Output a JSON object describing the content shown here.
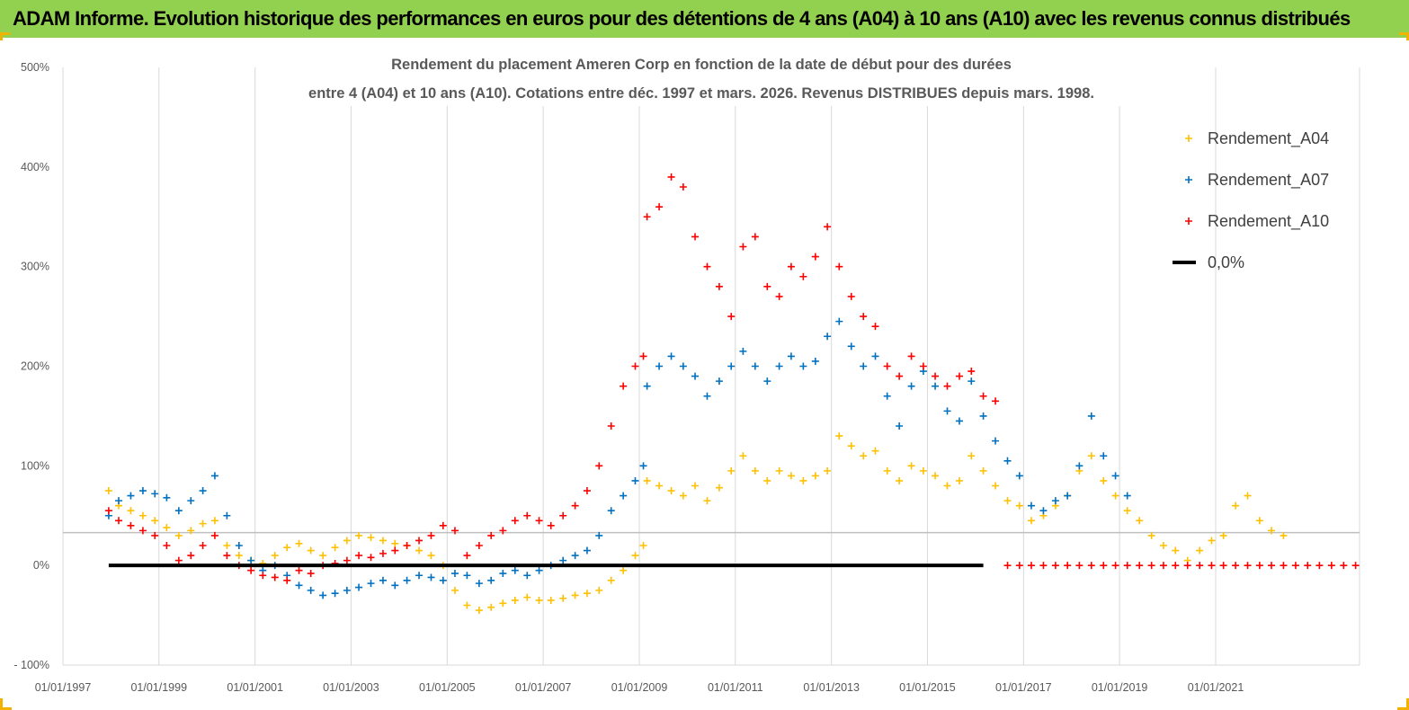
{
  "banner": {
    "title": "ADAM Informe. Evolution historique des performances en euros pour des détentions de 4 ans (A04) à 10 ans (A10) avec les revenus connus distribués",
    "background": "#92d050"
  },
  "chart_data": {
    "type": "scatter",
    "title": [
      "Rendement du placement Ameren Corp en fonction de la date de début pour des durées",
      "entre 4 (A04) et 10 ans (A10). Cotations entre déc. 1997 et mars. 2026. Revenus DISTRIBUES depuis mars. 1998."
    ],
    "xlabel": "",
    "ylabel": "",
    "x_range": [
      "1997-01-01",
      "2023-12-31"
    ],
    "ylim": [
      -100,
      500
    ],
    "y_ticks": [
      -100,
      0,
      100,
      200,
      300,
      400,
      500
    ],
    "y_tick_labels": [
      "- 100%",
      "0%",
      "100%",
      "200%",
      "300%",
      "400%",
      "500%"
    ],
    "x_tick_labels": [
      "01/01/1997",
      "01/01/1999",
      "01/01/2001",
      "01/01/2003",
      "01/01/2005",
      "01/01/2007",
      "01/01/2009",
      "01/01/2011",
      "01/01/2013",
      "01/01/2015",
      "01/01/2017",
      "01/01/2019",
      "01/01/2021"
    ],
    "grid": "vertical",
    "reference_hline": 33,
    "legend_position": "right",
    "series": [
      {
        "name": "Rendement_A04",
        "color": "#ffc000",
        "marker": "+",
        "x": [
          "1997-12-15",
          "1998-03-01",
          "1998-06-01",
          "1998-09-01",
          "1998-12-01",
          "1999-03-01",
          "1999-06-01",
          "1999-09-01",
          "1999-12-01",
          "2000-03-01",
          "2000-06-01",
          "2000-09-01",
          "2000-12-01",
          "2001-03-01",
          "2001-06-01",
          "2001-09-01",
          "2001-12-01",
          "2002-03-01",
          "2002-06-01",
          "2002-09-01",
          "2002-12-01",
          "2003-03-01",
          "2003-06-01",
          "2003-09-01",
          "2003-12-01",
          "2004-03-01",
          "2004-06-01",
          "2004-09-01",
          "2004-12-01",
          "2005-03-01",
          "2005-06-01",
          "2005-09-01",
          "2005-12-01",
          "2006-03-01",
          "2006-06-01",
          "2006-09-01",
          "2006-12-01",
          "2007-03-01",
          "2007-06-01",
          "2007-09-01",
          "2007-12-01",
          "2008-03-01",
          "2008-06-01",
          "2008-09-01",
          "2008-12-01",
          "2009-02-01",
          "2009-03-01",
          "2009-06-01",
          "2009-09-01",
          "2009-12-01",
          "2010-03-01",
          "2010-06-01",
          "2010-09-01",
          "2010-12-01",
          "2011-03-01",
          "2011-06-01",
          "2011-09-01",
          "2011-12-01",
          "2012-03-01",
          "2012-06-01",
          "2012-09-01",
          "2012-12-01",
          "2013-03-01",
          "2013-06-01",
          "2013-09-01",
          "2013-12-01",
          "2014-03-01",
          "2014-06-01",
          "2014-09-01",
          "2014-12-01",
          "2015-03-01",
          "2015-06-01",
          "2015-09-01",
          "2015-12-01",
          "2016-03-01",
          "2016-06-01",
          "2016-09-01",
          "2016-12-01",
          "2017-03-01",
          "2017-06-01",
          "2017-09-01",
          "2017-12-01",
          "2018-03-01",
          "2018-06-01",
          "2018-09-01",
          "2018-12-01",
          "2019-03-01",
          "2019-06-01",
          "2019-09-01",
          "2019-12-01",
          "2020-03-01",
          "2020-06-01",
          "2020-09-01",
          "2020-12-01",
          "2021-03-01",
          "2021-06-01",
          "2021-09-01",
          "2021-12-01",
          "2022-03-01",
          "2022-06-01"
        ],
        "y": [
          75,
          60,
          55,
          50,
          45,
          38,
          30,
          35,
          42,
          45,
          20,
          10,
          5,
          2,
          10,
          18,
          22,
          15,
          10,
          18,
          25,
          30,
          28,
          25,
          22,
          20,
          15,
          10,
          0,
          -25,
          -40,
          -45,
          -42,
          -38,
          -35,
          -32,
          -35,
          -35,
          -33,
          -30,
          -28,
          -25,
          -15,
          -5,
          10,
          20,
          85,
          80,
          75,
          70,
          80,
          65,
          78,
          95,
          110,
          95,
          85,
          95,
          90,
          85,
          90,
          95,
          130,
          120,
          110,
          115,
          95,
          85,
          100,
          95,
          90,
          80,
          85,
          110,
          95,
          80,
          65,
          60,
          45,
          50,
          60,
          70,
          95,
          110,
          85,
          70,
          55,
          45,
          30,
          20,
          15,
          5,
          15,
          25,
          30,
          60,
          70,
          45,
          35,
          30
        ]
      },
      {
        "name": "Rendement_A07",
        "color": "#0070c0",
        "marker": "+",
        "x": [
          "1997-12-15",
          "1998-03-01",
          "1998-06-01",
          "1998-09-01",
          "1998-12-01",
          "1999-03-01",
          "1999-06-01",
          "1999-09-01",
          "1999-12-01",
          "2000-03-01",
          "2000-06-01",
          "2000-09-01",
          "2000-12-01",
          "2001-03-01",
          "2001-06-01",
          "2001-09-01",
          "2001-12-01",
          "2002-03-01",
          "2002-06-01",
          "2002-09-01",
          "2002-12-01",
          "2003-03-01",
          "2003-06-01",
          "2003-09-01",
          "2003-12-01",
          "2004-03-01",
          "2004-06-01",
          "2004-09-01",
          "2004-12-01",
          "2005-03-01",
          "2005-06-01",
          "2005-09-01",
          "2005-12-01",
          "2006-03-01",
          "2006-06-01",
          "2006-09-01",
          "2006-12-01",
          "2007-03-01",
          "2007-06-01",
          "2007-09-01",
          "2007-12-01",
          "2008-03-01",
          "2008-06-01",
          "2008-09-01",
          "2008-12-01",
          "2009-02-01",
          "2009-03-01",
          "2009-06-01",
          "2009-09-01",
          "2009-12-01",
          "2010-03-01",
          "2010-06-01",
          "2010-09-01",
          "2010-12-01",
          "2011-03-01",
          "2011-06-01",
          "2011-09-01",
          "2011-12-01",
          "2012-03-01",
          "2012-06-01",
          "2012-09-01",
          "2012-12-01",
          "2013-03-01",
          "2013-06-01",
          "2013-09-01",
          "2013-12-01",
          "2014-03-01",
          "2014-06-01",
          "2014-09-01",
          "2014-12-01",
          "2015-03-01",
          "2015-06-01",
          "2015-09-01",
          "2015-12-01",
          "2016-03-01",
          "2016-06-01",
          "2016-09-01",
          "2016-12-01",
          "2017-03-01",
          "2017-06-01",
          "2017-09-01",
          "2017-12-01",
          "2018-03-01",
          "2018-06-01",
          "2018-09-01",
          "2018-12-01",
          "2019-03-01"
        ],
        "y": [
          50,
          65,
          70,
          75,
          72,
          68,
          55,
          65,
          75,
          90,
          50,
          20,
          5,
          -5,
          0,
          -10,
          -20,
          -25,
          -30,
          -28,
          -25,
          -22,
          -18,
          -15,
          -20,
          -15,
          -10,
          -12,
          -15,
          -8,
          -10,
          -18,
          -15,
          -8,
          -5,
          -10,
          -5,
          0,
          5,
          10,
          15,
          30,
          55,
          70,
          85,
          100,
          180,
          200,
          210,
          200,
          190,
          170,
          185,
          200,
          215,
          200,
          185,
          200,
          210,
          200,
          205,
          230,
          245,
          220,
          200,
          210,
          170,
          140,
          180,
          195,
          180,
          155,
          145,
          185,
          150,
          125,
          105,
          90,
          60,
          55,
          65,
          70,
          100,
          150,
          110,
          90,
          70
        ]
      },
      {
        "name": "Rendement_A10",
        "color": "#ff0000",
        "marker": "+",
        "x": [
          "1997-12-15",
          "1998-03-01",
          "1998-06-01",
          "1998-09-01",
          "1998-12-01",
          "1999-03-01",
          "1999-06-01",
          "1999-09-01",
          "1999-12-01",
          "2000-03-01",
          "2000-06-01",
          "2000-09-01",
          "2000-12-01",
          "2001-03-01",
          "2001-06-01",
          "2001-09-01",
          "2001-12-01",
          "2002-03-01",
          "2002-06-01",
          "2002-09-01",
          "2002-12-01",
          "2003-03-01",
          "2003-06-01",
          "2003-09-01",
          "2003-12-01",
          "2004-03-01",
          "2004-06-01",
          "2004-09-01",
          "2004-12-01",
          "2005-03-01",
          "2005-06-01",
          "2005-09-01",
          "2005-12-01",
          "2006-03-01",
          "2006-06-01",
          "2006-09-01",
          "2006-12-01",
          "2007-03-01",
          "2007-06-01",
          "2007-09-01",
          "2007-12-01",
          "2008-03-01",
          "2008-06-01",
          "2008-09-01",
          "2008-12-01",
          "2009-02-01",
          "2009-03-01",
          "2009-06-01",
          "2009-09-01",
          "2009-12-01",
          "2010-03-01",
          "2010-06-01",
          "2010-09-01",
          "2010-12-01",
          "2011-03-01",
          "2011-06-01",
          "2011-09-01",
          "2011-12-01",
          "2012-03-01",
          "2012-06-01",
          "2012-09-01",
          "2012-12-01",
          "2013-03-01",
          "2013-06-01",
          "2013-09-01",
          "2013-12-01",
          "2014-03-01",
          "2014-06-01",
          "2014-09-01",
          "2014-12-01",
          "2015-03-01",
          "2015-06-01",
          "2015-09-01",
          "2015-12-01",
          "2016-03-01",
          "2016-06-01",
          "2016-09-01",
          "2016-12-01",
          "2017-03-01",
          "2017-06-01",
          "2017-09-01",
          "2017-12-01",
          "2018-03-01",
          "2018-06-01",
          "2018-09-01",
          "2018-12-01",
          "2019-03-01",
          "2019-06-01",
          "2019-09-01",
          "2019-12-01",
          "2020-03-01",
          "2020-06-01",
          "2020-09-01",
          "2020-12-01",
          "2021-03-01",
          "2021-06-01",
          "2021-09-01",
          "2021-12-01",
          "2022-03-01",
          "2022-06-01",
          "2022-09-01",
          "2022-12-01",
          "2023-03-01",
          "2023-06-01",
          "2023-09-01",
          "2023-12-01"
        ],
        "y": [
          55,
          45,
          40,
          35,
          30,
          20,
          5,
          10,
          20,
          30,
          10,
          0,
          -5,
          -10,
          -12,
          -15,
          -5,
          -8,
          0,
          2,
          5,
          10,
          8,
          12,
          15,
          20,
          25,
          30,
          40,
          35,
          10,
          20,
          30,
          35,
          45,
          50,
          45,
          40,
          50,
          60,
          75,
          100,
          140,
          180,
          200,
          210,
          350,
          360,
          390,
          380,
          330,
          300,
          280,
          250,
          320,
          330,
          280,
          270,
          300,
          290,
          310,
          340,
          300,
          270,
          250,
          240,
          200,
          190,
          210,
          200,
          190,
          180,
          190,
          195,
          170,
          165,
          0,
          0,
          0,
          0,
          0,
          0,
          0,
          0,
          0,
          0,
          0,
          0,
          0,
          0,
          0,
          0,
          0,
          0,
          0,
          0,
          0,
          0,
          0,
          0,
          0,
          0,
          0,
          0,
          0,
          0
        ]
      },
      {
        "name": "0,0%",
        "color": "#000000",
        "marker": "line",
        "x": [
          "1997-12-15",
          "2016-03-01"
        ],
        "y": [
          0,
          0
        ]
      }
    ]
  }
}
